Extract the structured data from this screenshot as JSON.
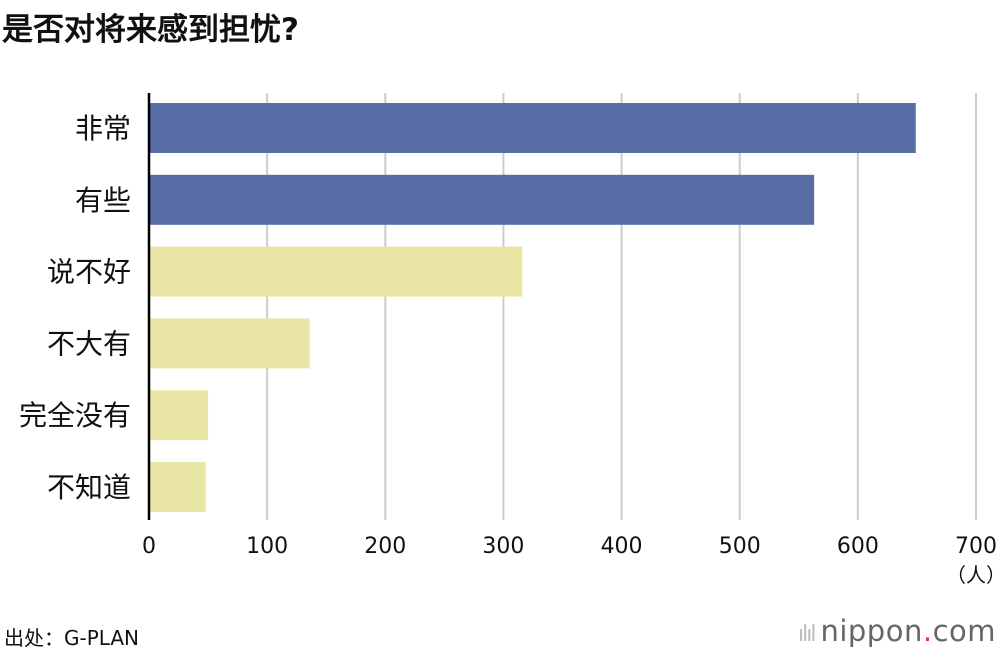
{
  "title": "是否对将来感到担忧?",
  "source": "出处：G-PLAN",
  "logo": {
    "name": "nippon",
    "dot": ".",
    "tld": "com"
  },
  "chart_data": {
    "type": "bar",
    "orientation": "horizontal",
    "title": "是否对将来感到担忧?",
    "categories": [
      "非常",
      "有些",
      "说不好",
      "不大有",
      "完全没有",
      "不知道"
    ],
    "values": [
      649,
      563,
      316,
      136,
      50,
      48
    ],
    "bar_colors": [
      "#586ca6",
      "#586ca6",
      "#e9e6a5",
      "#e9e6a5",
      "#e9e6a5",
      "#e9e6a5"
    ],
    "xlim": [
      0,
      700
    ],
    "xticks": [
      0,
      100,
      200,
      300,
      400,
      500,
      600,
      700
    ],
    "xunit": "（人）",
    "grid": true,
    "grid_color": "#cccccc"
  }
}
